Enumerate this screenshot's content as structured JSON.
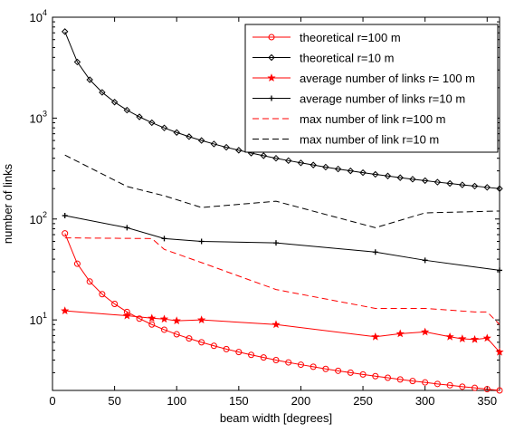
{
  "chart_data": {
    "type": "line",
    "xlabel": "beam width [degrees]",
    "ylabel": "number of links",
    "xlim": [
      0,
      360
    ],
    "ylim": [
      2,
      10000
    ],
    "yscale": "log",
    "grid": false,
    "legend_position": "top-right",
    "x_ticks": [
      "0",
      "50",
      "100",
      "150",
      "200",
      "250",
      "300",
      "350"
    ],
    "x_tick_values": [
      0,
      50,
      100,
      150,
      200,
      250,
      300,
      350
    ],
    "y_ticks": [
      {
        "value": 10,
        "base": "10",
        "exp": "1"
      },
      {
        "value": 100,
        "base": "10",
        "exp": "2"
      },
      {
        "value": 1000,
        "base": "10",
        "exp": "3"
      },
      {
        "value": 10000,
        "base": "10",
        "exp": "4"
      }
    ],
    "series": [
      {
        "name": "theoretical r=100 m",
        "color": "#ff0000",
        "line": "solid",
        "marker": "circle",
        "x": [
          10,
          20,
          30,
          40,
          50,
          60,
          70,
          80,
          90,
          100,
          110,
          120,
          130,
          140,
          150,
          160,
          170,
          180,
          190,
          200,
          210,
          220,
          230,
          240,
          250,
          260,
          270,
          280,
          290,
          300,
          310,
          320,
          330,
          340,
          350,
          360
        ],
        "values": [
          72,
          36,
          24,
          18,
          14.4,
          12,
          10.3,
          9,
          8,
          7.2,
          6.55,
          6,
          5.54,
          5.14,
          4.8,
          4.5,
          4.24,
          4,
          3.79,
          3.6,
          3.43,
          3.27,
          3.13,
          3,
          2.88,
          2.77,
          2.67,
          2.57,
          2.48,
          2.4,
          2.32,
          2.25,
          2.18,
          2.12,
          2.06,
          2
        ]
      },
      {
        "name": "theoretical r=10 m",
        "color": "#000000",
        "line": "solid",
        "marker": "diamond",
        "x": [
          10,
          20,
          30,
          40,
          50,
          60,
          70,
          80,
          90,
          100,
          110,
          120,
          130,
          140,
          150,
          160,
          170,
          180,
          190,
          200,
          210,
          220,
          230,
          240,
          250,
          260,
          270,
          280,
          290,
          300,
          310,
          320,
          330,
          340,
          350,
          360
        ],
        "values": [
          7200,
          3600,
          2400,
          1800,
          1440,
          1200,
          1029,
          900,
          800,
          720,
          655,
          600,
          554,
          514,
          480,
          450,
          424,
          400,
          379,
          360,
          343,
          327,
          313,
          300,
          288,
          277,
          267,
          257,
          248,
          240,
          232,
          225,
          218,
          212,
          206,
          200
        ]
      },
      {
        "name": "average number of links r= 100 m",
        "color": "#ff0000",
        "line": "solid",
        "marker": "star",
        "x": [
          10,
          60,
          80,
          90,
          100,
          120,
          180,
          260,
          280,
          300,
          320,
          330,
          340,
          350,
          360
        ],
        "values": [
          12.3,
          11,
          10.4,
          10.2,
          9.8,
          10,
          9,
          6.8,
          7.3,
          7.6,
          6.8,
          6.5,
          6.4,
          6.6,
          4.8
        ]
      },
      {
        "name": "average number of links r=10 m",
        "color": "#000000",
        "line": "solid",
        "marker": "plus",
        "x": [
          10,
          60,
          90,
          120,
          180,
          260,
          300,
          360
        ],
        "values": [
          108,
          82,
          64,
          60,
          58,
          47,
          39,
          31
        ]
      },
      {
        "name": "max number of link r=100 m",
        "color": "#ff0000",
        "line": "dashed",
        "marker": "none",
        "x": [
          10,
          80,
          90,
          120,
          180,
          260,
          300,
          340,
          350,
          360
        ],
        "values": [
          65,
          64,
          50,
          37,
          20,
          13,
          13,
          12,
          12,
          9
        ]
      },
      {
        "name": "max number of link r=10 m",
        "color": "#000000",
        "line": "dashed",
        "marker": "none",
        "x": [
          10,
          60,
          90,
          120,
          180,
          260,
          300,
          360
        ],
        "values": [
          430,
          210,
          170,
          130,
          150,
          82,
          115,
          120
        ]
      }
    ]
  }
}
